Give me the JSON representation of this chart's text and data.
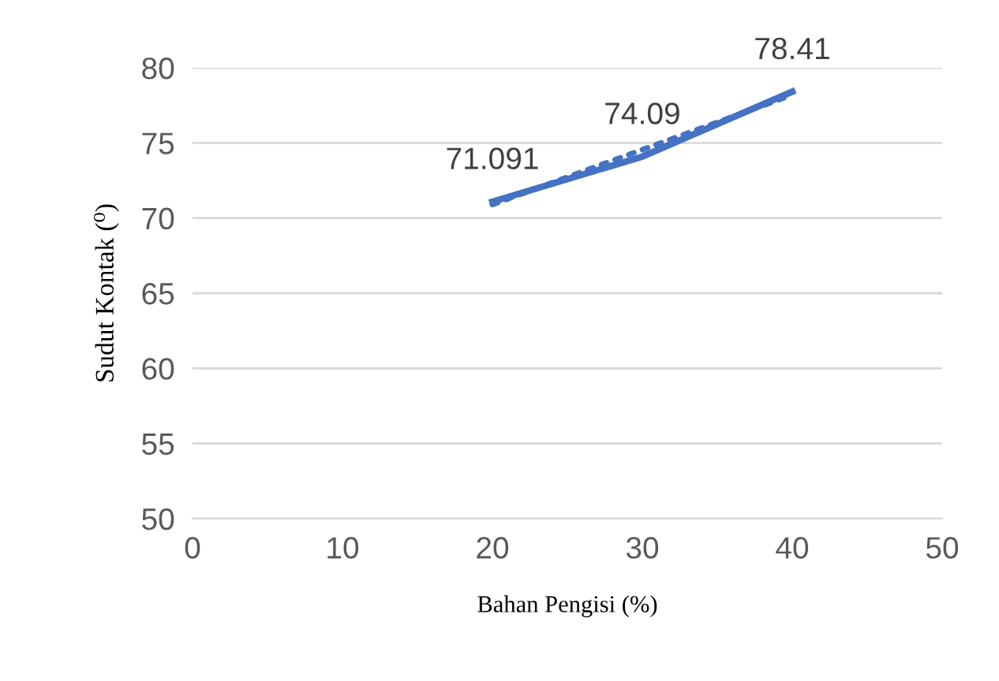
{
  "chart_data": {
    "type": "line",
    "xlabel": "Bahan Pengisi (%)",
    "ylabel": "Sudut Kontak (⁰)",
    "xlim": [
      0,
      50
    ],
    "xticks": [
      0,
      10,
      20,
      30,
      40,
      50
    ],
    "ylim": [
      50,
      80
    ],
    "yticks": [
      50,
      55,
      60,
      65,
      70,
      75,
      80
    ],
    "grid": "y",
    "legend": false,
    "marker": "none",
    "series": [
      {
        "color": "#4472c4",
        "x": [
          20,
          30,
          40
        ],
        "values": [
          71.091,
          74.09,
          78.41
        ],
        "value_labels": [
          "71.091",
          "74.09",
          "78.41"
        ],
        "line_style": "solid"
      },
      {
        "type": "line",
        "color": "#4472c4",
        "x": [
          20,
          40
        ],
        "values": [
          70.9,
          78.2
        ],
        "line_style": "dotted"
      }
    ]
  }
}
